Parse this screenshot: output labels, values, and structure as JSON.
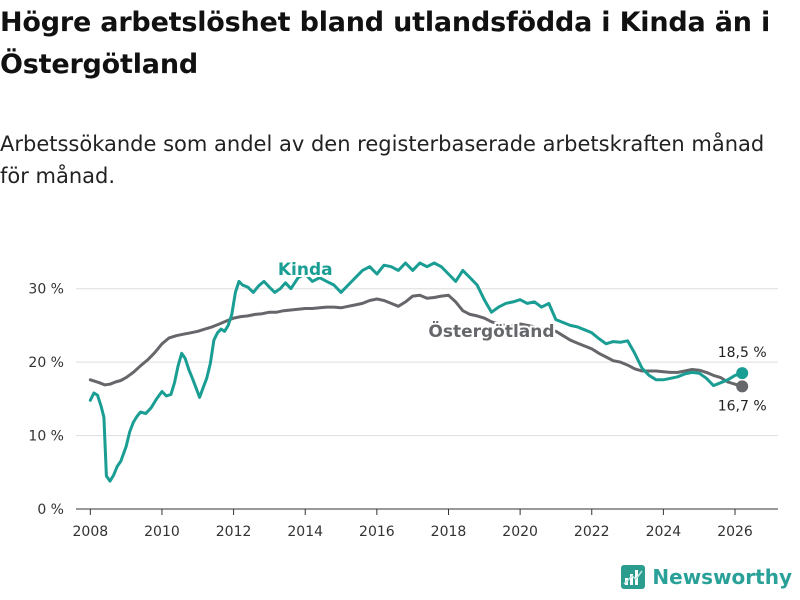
{
  "header": {
    "title": "Högre arbetslöshet bland utlandsfödda i Kinda än i Östergötland",
    "subtitle": "Arbetssökande som andel av den registerbaserade arbetskraften månad för månad."
  },
  "brand": {
    "name": "Newsworthy",
    "icon": "newsworthy-logo-icon",
    "color": "#2a9d8f"
  },
  "chart_data": {
    "type": "line",
    "title": "Högre arbetslöshet bland utlandsfödda i Kinda än i Östergötland",
    "xlabel": "",
    "ylabel": "",
    "xlim": [
      2007.6,
      2027.2
    ],
    "ylim": [
      0,
      35
    ],
    "xticks": [
      2008,
      2010,
      2012,
      2014,
      2016,
      2018,
      2020,
      2022,
      2024,
      2026
    ],
    "xtick_labels": [
      "2008",
      "2010",
      "2012",
      "2014",
      "2016",
      "2018",
      "2020",
      "2022",
      "2024",
      "2026"
    ],
    "yticks": [
      0,
      10,
      20,
      30
    ],
    "ytick_labels": [
      "0 %",
      "10 %",
      "20 %",
      "30 %"
    ],
    "grid": true,
    "series": [
      {
        "name": "Östergötland",
        "label": "Östergötland",
        "color": "#66676b",
        "end_label": "16,7 %",
        "points": [
          [
            2008.0,
            17.6
          ],
          [
            2008.25,
            17.2
          ],
          [
            2008.4,
            16.9
          ],
          [
            2008.55,
            17.0
          ],
          [
            2008.7,
            17.3
          ],
          [
            2008.85,
            17.5
          ],
          [
            2009.0,
            17.9
          ],
          [
            2009.2,
            18.6
          ],
          [
            2009.4,
            19.5
          ],
          [
            2009.6,
            20.3
          ],
          [
            2009.8,
            21.3
          ],
          [
            2010.0,
            22.5
          ],
          [
            2010.2,
            23.3
          ],
          [
            2010.4,
            23.6
          ],
          [
            2010.6,
            23.8
          ],
          [
            2010.8,
            24.0
          ],
          [
            2011.0,
            24.2
          ],
          [
            2011.2,
            24.5
          ],
          [
            2011.4,
            24.8
          ],
          [
            2011.6,
            25.2
          ],
          [
            2011.8,
            25.6
          ],
          [
            2012.0,
            26.0
          ],
          [
            2012.2,
            26.2
          ],
          [
            2012.4,
            26.3
          ],
          [
            2012.6,
            26.5
          ],
          [
            2012.8,
            26.6
          ],
          [
            2013.0,
            26.8
          ],
          [
            2013.2,
            26.8
          ],
          [
            2013.4,
            27.0
          ],
          [
            2013.6,
            27.1
          ],
          [
            2013.8,
            27.2
          ],
          [
            2014.0,
            27.3
          ],
          [
            2014.2,
            27.3
          ],
          [
            2014.4,
            27.4
          ],
          [
            2014.6,
            27.5
          ],
          [
            2014.8,
            27.5
          ],
          [
            2015.0,
            27.4
          ],
          [
            2015.2,
            27.6
          ],
          [
            2015.4,
            27.8
          ],
          [
            2015.6,
            28.0
          ],
          [
            2015.8,
            28.4
          ],
          [
            2016.0,
            28.6
          ],
          [
            2016.2,
            28.4
          ],
          [
            2016.4,
            28.0
          ],
          [
            2016.6,
            27.6
          ],
          [
            2016.8,
            28.2
          ],
          [
            2017.0,
            29.0
          ],
          [
            2017.2,
            29.1
          ],
          [
            2017.4,
            28.7
          ],
          [
            2017.6,
            28.8
          ],
          [
            2017.8,
            29.0
          ],
          [
            2018.0,
            29.1
          ],
          [
            2018.2,
            28.2
          ],
          [
            2018.4,
            27.0
          ],
          [
            2018.6,
            26.5
          ],
          [
            2018.8,
            26.3
          ],
          [
            2019.0,
            26.0
          ],
          [
            2019.2,
            25.5
          ],
          [
            2019.4,
            25.2
          ],
          [
            2019.6,
            25.0
          ],
          [
            2019.8,
            24.9
          ],
          [
            2020.0,
            25.2
          ],
          [
            2020.2,
            25.0
          ],
          [
            2020.4,
            24.8
          ],
          [
            2020.6,
            24.5
          ],
          [
            2020.8,
            24.4
          ],
          [
            2021.0,
            24.2
          ],
          [
            2021.2,
            23.6
          ],
          [
            2021.4,
            23.0
          ],
          [
            2021.6,
            22.6
          ],
          [
            2021.8,
            22.2
          ],
          [
            2022.0,
            21.8
          ],
          [
            2022.2,
            21.2
          ],
          [
            2022.4,
            20.7
          ],
          [
            2022.6,
            20.2
          ],
          [
            2022.8,
            20.0
          ],
          [
            2023.0,
            19.6
          ],
          [
            2023.2,
            19.1
          ],
          [
            2023.4,
            18.8
          ],
          [
            2023.6,
            18.8
          ],
          [
            2023.8,
            18.8
          ],
          [
            2024.0,
            18.7
          ],
          [
            2024.2,
            18.6
          ],
          [
            2024.4,
            18.6
          ],
          [
            2024.6,
            18.8
          ],
          [
            2024.8,
            19.0
          ],
          [
            2025.0,
            18.9
          ],
          [
            2025.2,
            18.6
          ],
          [
            2025.4,
            18.2
          ],
          [
            2025.6,
            17.9
          ],
          [
            2025.8,
            17.3
          ],
          [
            2026.0,
            17.0
          ],
          [
            2026.2,
            16.7
          ]
        ]
      },
      {
        "name": "Kinda",
        "label": "Kinda",
        "color": "#1a9e94",
        "end_label": "18,5 %",
        "points": [
          [
            2008.0,
            14.8
          ],
          [
            2008.1,
            15.8
          ],
          [
            2008.2,
            15.5
          ],
          [
            2008.3,
            14.0
          ],
          [
            2008.38,
            12.5
          ],
          [
            2008.45,
            4.5
          ],
          [
            2008.55,
            3.8
          ],
          [
            2008.65,
            4.6
          ],
          [
            2008.75,
            5.8
          ],
          [
            2008.85,
            6.5
          ],
          [
            2009.0,
            8.5
          ],
          [
            2009.1,
            10.5
          ],
          [
            2009.2,
            11.8
          ],
          [
            2009.3,
            12.6
          ],
          [
            2009.4,
            13.2
          ],
          [
            2009.55,
            13.0
          ],
          [
            2009.7,
            13.8
          ],
          [
            2009.85,
            15.0
          ],
          [
            2010.0,
            16.0
          ],
          [
            2010.12,
            15.4
          ],
          [
            2010.25,
            15.6
          ],
          [
            2010.35,
            17.2
          ],
          [
            2010.45,
            19.5
          ],
          [
            2010.55,
            21.2
          ],
          [
            2010.65,
            20.5
          ],
          [
            2010.75,
            19.0
          ],
          [
            2010.85,
            17.8
          ],
          [
            2010.95,
            16.5
          ],
          [
            2011.05,
            15.2
          ],
          [
            2011.15,
            16.5
          ],
          [
            2011.25,
            17.8
          ],
          [
            2011.35,
            19.8
          ],
          [
            2011.45,
            23.0
          ],
          [
            2011.55,
            24.0
          ],
          [
            2011.65,
            24.5
          ],
          [
            2011.75,
            24.2
          ],
          [
            2011.85,
            25.0
          ],
          [
            2011.95,
            26.5
          ],
          [
            2012.05,
            29.5
          ],
          [
            2012.15,
            31.0
          ],
          [
            2012.25,
            30.5
          ],
          [
            2012.4,
            30.2
          ],
          [
            2012.55,
            29.5
          ],
          [
            2012.7,
            30.4
          ],
          [
            2012.85,
            31.0
          ],
          [
            2013.0,
            30.2
          ],
          [
            2013.15,
            29.5
          ],
          [
            2013.3,
            30.0
          ],
          [
            2013.45,
            30.8
          ],
          [
            2013.6,
            30.0
          ],
          [
            2013.8,
            31.5
          ],
          [
            2014.0,
            32.0
          ],
          [
            2014.2,
            31.0
          ],
          [
            2014.4,
            31.5
          ],
          [
            2014.6,
            31.0
          ],
          [
            2014.8,
            30.5
          ],
          [
            2015.0,
            29.5
          ],
          [
            2015.2,
            30.5
          ],
          [
            2015.4,
            31.5
          ],
          [
            2015.6,
            32.5
          ],
          [
            2015.8,
            33.0
          ],
          [
            2016.0,
            32.0
          ],
          [
            2016.2,
            33.2
          ],
          [
            2016.4,
            33.0
          ],
          [
            2016.6,
            32.5
          ],
          [
            2016.8,
            33.5
          ],
          [
            2017.0,
            32.5
          ],
          [
            2017.2,
            33.5
          ],
          [
            2017.4,
            33.0
          ],
          [
            2017.6,
            33.5
          ],
          [
            2017.8,
            33.0
          ],
          [
            2018.0,
            32.0
          ],
          [
            2018.2,
            31.0
          ],
          [
            2018.4,
            32.5
          ],
          [
            2018.6,
            31.5
          ],
          [
            2018.8,
            30.5
          ],
          [
            2019.0,
            28.5
          ],
          [
            2019.2,
            26.8
          ],
          [
            2019.4,
            27.5
          ],
          [
            2019.6,
            28.0
          ],
          [
            2019.8,
            28.2
          ],
          [
            2020.0,
            28.5
          ],
          [
            2020.2,
            28.0
          ],
          [
            2020.4,
            28.2
          ],
          [
            2020.6,
            27.5
          ],
          [
            2020.8,
            28.0
          ],
          [
            2021.0,
            25.8
          ],
          [
            2021.2,
            25.4
          ],
          [
            2021.4,
            25.0
          ],
          [
            2021.6,
            24.8
          ],
          [
            2021.8,
            24.4
          ],
          [
            2022.0,
            24.0
          ],
          [
            2022.2,
            23.2
          ],
          [
            2022.4,
            22.5
          ],
          [
            2022.6,
            22.8
          ],
          [
            2022.8,
            22.7
          ],
          [
            2023.0,
            22.9
          ],
          [
            2023.2,
            21.2
          ],
          [
            2023.4,
            19.2
          ],
          [
            2023.6,
            18.2
          ],
          [
            2023.8,
            17.6
          ],
          [
            2024.0,
            17.6
          ],
          [
            2024.2,
            17.8
          ],
          [
            2024.4,
            18.0
          ],
          [
            2024.6,
            18.4
          ],
          [
            2024.8,
            18.6
          ],
          [
            2025.0,
            18.5
          ],
          [
            2025.2,
            17.8
          ],
          [
            2025.4,
            16.8
          ],
          [
            2025.6,
            17.2
          ],
          [
            2025.8,
            17.6
          ],
          [
            2026.0,
            18.2
          ],
          [
            2026.2,
            18.5
          ]
        ]
      }
    ]
  }
}
